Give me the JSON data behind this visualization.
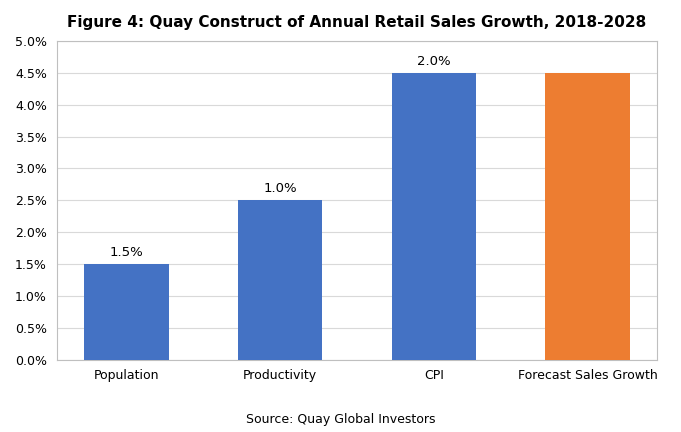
{
  "title": "Figure 4: Quay Construct of Annual Retail Sales Growth, 2018-2028",
  "categories": [
    "Population",
    "Productivity",
    "CPI",
    "Forecast Sales Growth"
  ],
  "values": [
    0.015,
    0.025,
    0.045,
    0.045
  ],
  "bar_colors": [
    "#4472C4",
    "#4472C4",
    "#4472C4",
    "#ED7D31"
  ],
  "bar_labels": [
    "1.5%",
    "1.0%",
    "2.0%",
    ""
  ],
  "ylim": [
    0,
    0.05
  ],
  "yticks": [
    0.0,
    0.005,
    0.01,
    0.015,
    0.02,
    0.025,
    0.03,
    0.035,
    0.04,
    0.045,
    0.05
  ],
  "ytick_labels": [
    "0.0%",
    "0.5%",
    "1.0%",
    "1.5%",
    "2.0%",
    "2.5%",
    "3.0%",
    "3.5%",
    "4.0%",
    "4.5%",
    "5.0%"
  ],
  "source_text": "Source: Quay Global Investors",
  "background_color": "#FFFFFF",
  "plot_bg_color": "#FFFFFF",
  "grid_color": "#D9D9D9",
  "border_color": "#BFBFBF",
  "title_fontsize": 11,
  "label_fontsize": 9.5,
  "tick_fontsize": 9,
  "source_fontsize": 9,
  "bar_width": 0.55
}
